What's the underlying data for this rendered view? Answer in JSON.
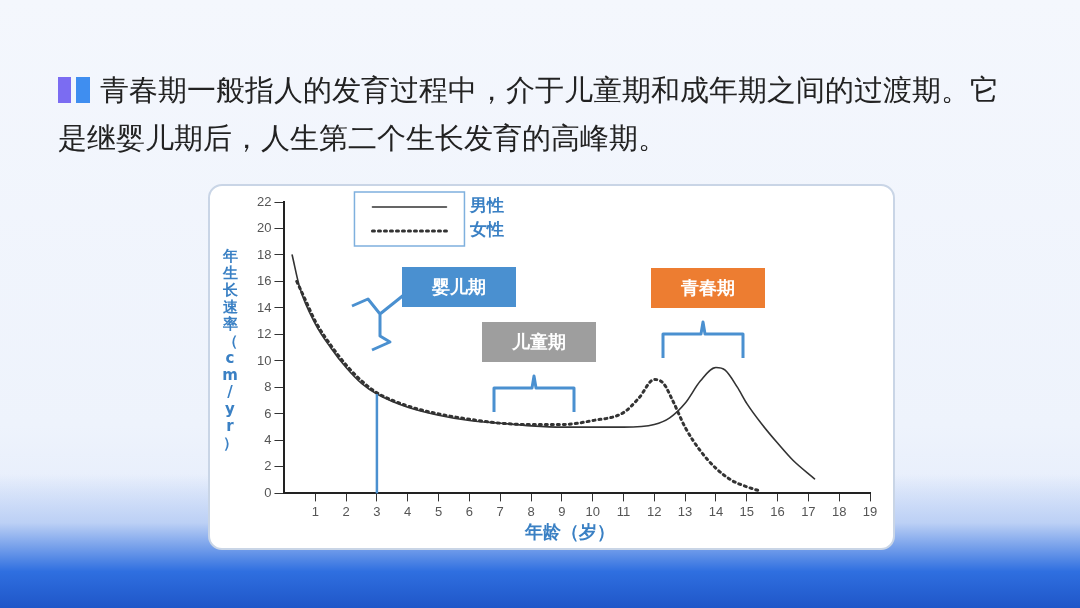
{
  "chart_data": {
    "type": "line",
    "title": "青春期一般指人的发育过程中，介于儿童期和成年期之间的过渡期。它是继婴儿期后，人生第二个生长发育的高峰期。",
    "xlabel": "年龄（岁）",
    "ylabel": "年生长速率（cm/yr）",
    "xlim": [
      0,
      19
    ],
    "xticks": [
      1,
      2,
      3,
      4,
      5,
      6,
      7,
      8,
      9,
      10,
      11,
      12,
      13,
      14,
      15,
      16,
      17,
      18,
      19
    ],
    "ylim": [
      0,
      22
    ],
    "yticks": [
      0,
      2,
      4,
      6,
      8,
      10,
      12,
      14,
      16,
      18,
      20,
      22
    ],
    "grid": false,
    "legend": "top left",
    "series": [
      {
        "name": "男性",
        "color": "#333333",
        "line_style": "solid",
        "x": [
          0.25,
          0.5,
          1,
          1.5,
          2,
          2.5,
          3,
          4,
          5,
          6,
          7,
          8,
          9,
          10,
          11,
          12,
          12.5,
          13,
          13.5,
          14,
          14.3,
          14.7,
          15,
          15.5,
          16,
          16.5,
          17.2
        ],
        "values": [
          18,
          15.5,
          12.8,
          11,
          9.5,
          8.3,
          7.5,
          6.5,
          5.9,
          5.5,
          5.3,
          5.1,
          5.0,
          5.0,
          5.0,
          5.2,
          5.7,
          6.8,
          8.5,
          9.5,
          9.3,
          8,
          6.8,
          5.2,
          3.8,
          2.5,
          1.1
        ]
      },
      {
        "name": "女性",
        "color": "#333333",
        "line_style": "dotted",
        "x": [
          0.4,
          0.7,
          1,
          1.5,
          2,
          2.5,
          3,
          4,
          5,
          6,
          7,
          8,
          9,
          10,
          11,
          11.5,
          12,
          12.3,
          12.6,
          13,
          13.5,
          14,
          14.5,
          15,
          15.4
        ],
        "values": [
          16,
          14.5,
          13,
          11.2,
          9.7,
          8.5,
          7.6,
          6.6,
          6.0,
          5.6,
          5.3,
          5.2,
          5.2,
          5.5,
          6.1,
          7.2,
          8.6,
          8.3,
          7,
          5,
          3.2,
          1.9,
          1,
          0.5,
          0.2
        ]
      }
    ],
    "ref_lines": [
      {
        "axis": "x",
        "value": 3,
        "color": "#4a90d0"
      }
    ],
    "annotations": [
      "婴儿期",
      "儿童期",
      "青春期"
    ]
  }
}
